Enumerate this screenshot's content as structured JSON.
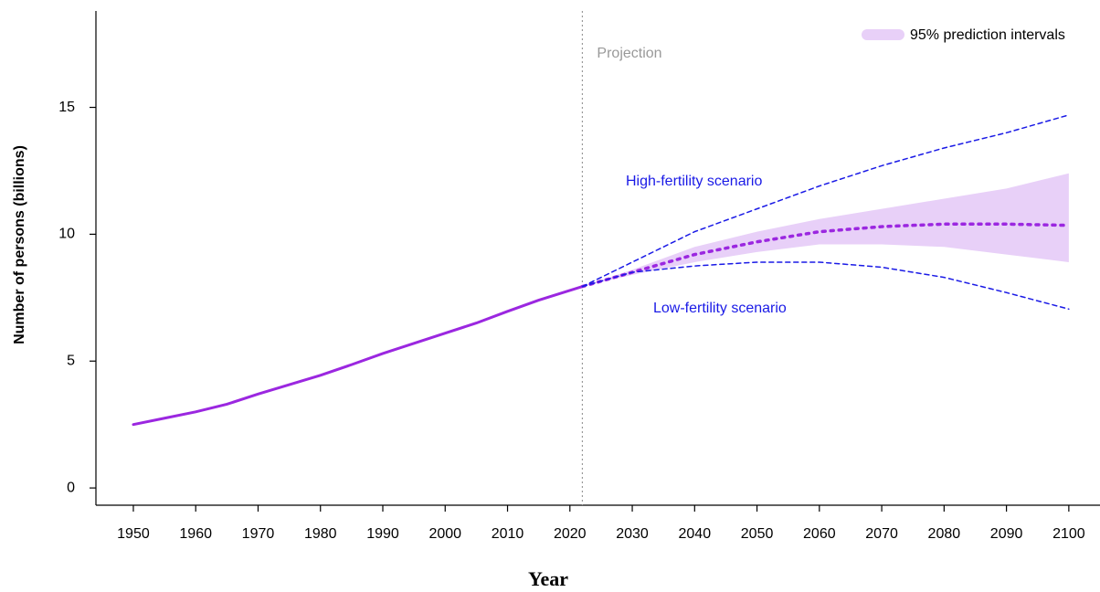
{
  "chart_data": {
    "type": "line",
    "xlabel": "Year",
    "ylabel": "Number of persons (billions)",
    "x": [
      1950,
      1955,
      1960,
      1965,
      1970,
      1975,
      1980,
      1985,
      1990,
      1995,
      2000,
      2005,
      2010,
      2015,
      2022,
      2030,
      2040,
      2050,
      2060,
      2070,
      2080,
      2090,
      2100
    ],
    "series": [
      {
        "color": "#9b27e0",
        "style": "solid",
        "values": [
          2.5,
          2.75,
          3.0,
          3.3,
          3.7,
          4.07,
          4.44,
          4.86,
          5.3,
          5.7,
          6.1,
          6.5,
          6.96,
          7.4,
          7.94,
          null,
          null,
          null,
          null,
          null,
          null,
          null,
          null
        ]
      },
      {
        "color": "#9b27e0",
        "style": "dotted",
        "values": [
          null,
          null,
          null,
          null,
          null,
          null,
          null,
          null,
          null,
          null,
          null,
          null,
          null,
          null,
          7.94,
          8.5,
          9.2,
          9.7,
          10.1,
          10.3,
          10.4,
          10.4,
          10.35
        ]
      },
      {
        "name": "High-fertility scenario",
        "color": "#1a1ae6",
        "style": "dashed",
        "values": [
          null,
          null,
          null,
          null,
          null,
          null,
          null,
          null,
          null,
          null,
          null,
          null,
          null,
          null,
          7.94,
          8.9,
          10.1,
          11.0,
          11.9,
          12.7,
          13.4,
          14.0,
          14.7
        ]
      },
      {
        "name": "Low-fertility scenario",
        "color": "#1a1ae6",
        "style": "dashed",
        "values": [
          null,
          null,
          null,
          null,
          null,
          null,
          null,
          null,
          null,
          null,
          null,
          null,
          null,
          null,
          7.94,
          8.5,
          8.75,
          8.9,
          8.9,
          8.7,
          8.3,
          7.7,
          7.05
        ]
      }
    ],
    "band": {
      "name": "95% prediction intervals",
      "color": "#e8d0f8",
      "lower": [
        null,
        null,
        null,
        null,
        null,
        null,
        null,
        null,
        null,
        null,
        null,
        null,
        null,
        null,
        7.94,
        8.4,
        8.9,
        9.3,
        9.6,
        9.6,
        9.5,
        9.2,
        8.9
      ],
      "upper": [
        null,
        null,
        null,
        null,
        null,
        null,
        null,
        null,
        null,
        null,
        null,
        null,
        null,
        null,
        7.94,
        8.6,
        9.5,
        10.1,
        10.6,
        11.0,
        11.4,
        11.8,
        12.4
      ]
    },
    "vline": {
      "x": 2022,
      "label": "Projection",
      "color": "#999999"
    },
    "xlim": [
      1944,
      2105
    ],
    "ylim": [
      -0.68,
      18.8
    ],
    "xticks": [
      1950,
      1960,
      1970,
      1980,
      1990,
      2000,
      2010,
      2020,
      2030,
      2040,
      2050,
      2060,
      2070,
      2080,
      2090,
      2100
    ],
    "yticks": [
      0,
      5,
      10,
      15
    ],
    "legend": "top-right"
  }
}
